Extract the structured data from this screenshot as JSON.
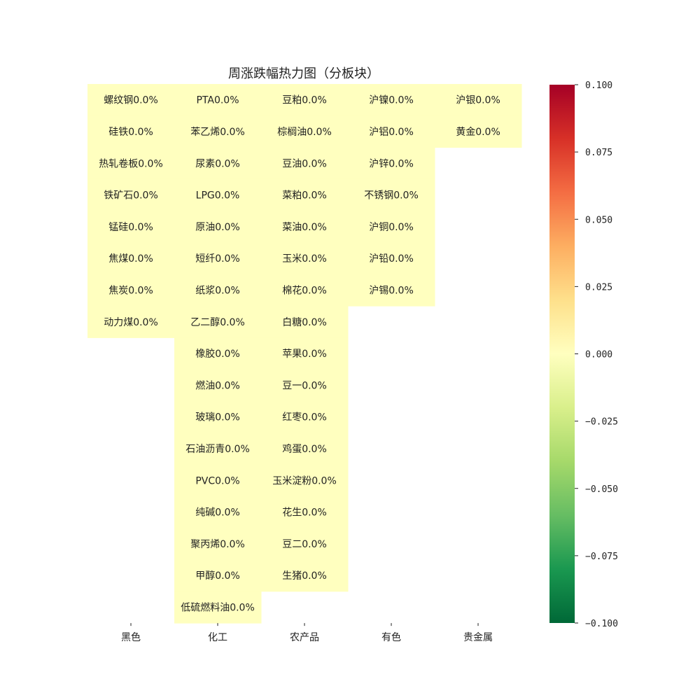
{
  "chart_data": {
    "type": "heatmap",
    "title": "周涨跌幅热力图（分板块）",
    "columns": [
      "黑色",
      "化工",
      "农产品",
      "有色",
      "贵金属"
    ],
    "cells": [
      [
        {
          "name": "螺纹钢",
          "value": 0.0,
          "label": "螺纹钢0.0%"
        },
        {
          "name": "硅铁",
          "value": 0.0,
          "label": "硅铁0.0%"
        },
        {
          "name": "热轧卷板",
          "value": 0.0,
          "label": "热轧卷板0.0%"
        },
        {
          "name": "铁矿石",
          "value": 0.0,
          "label": "铁矿石0.0%"
        },
        {
          "name": "锰硅",
          "value": 0.0,
          "label": "锰硅0.0%"
        },
        {
          "name": "焦煤",
          "value": 0.0,
          "label": "焦煤0.0%"
        },
        {
          "name": "焦炭",
          "value": 0.0,
          "label": "焦炭0.0%"
        },
        {
          "name": "动力煤",
          "value": 0.0,
          "label": "动力煤0.0%"
        }
      ],
      [
        {
          "name": "PTA",
          "value": 0.0,
          "label": "PTA0.0%"
        },
        {
          "name": "苯乙烯",
          "value": 0.0,
          "label": "苯乙烯0.0%"
        },
        {
          "name": "尿素",
          "value": 0.0,
          "label": "尿素0.0%"
        },
        {
          "name": "LPG",
          "value": 0.0,
          "label": "LPG0.0%"
        },
        {
          "name": "原油",
          "value": 0.0,
          "label": "原油0.0%"
        },
        {
          "name": "短纤",
          "value": 0.0,
          "label": "短纤0.0%"
        },
        {
          "name": "纸浆",
          "value": 0.0,
          "label": "纸浆0.0%"
        },
        {
          "name": "乙二醇",
          "value": 0.0,
          "label": "乙二醇0.0%"
        },
        {
          "name": "橡胶",
          "value": 0.0,
          "label": "橡胶0.0%"
        },
        {
          "name": "燃油",
          "value": 0.0,
          "label": "燃油0.0%"
        },
        {
          "name": "玻璃",
          "value": 0.0,
          "label": "玻璃0.0%"
        },
        {
          "name": "石油沥青",
          "value": 0.0,
          "label": "石油沥青0.0%"
        },
        {
          "name": "PVC",
          "value": 0.0,
          "label": "PVC0.0%"
        },
        {
          "name": "纯碱",
          "value": 0.0,
          "label": "纯碱0.0%"
        },
        {
          "name": "聚丙烯",
          "value": 0.0,
          "label": "聚丙烯0.0%"
        },
        {
          "name": "甲醇",
          "value": 0.0,
          "label": "甲醇0.0%"
        },
        {
          "name": "低硫燃料油",
          "value": 0.0,
          "label": "低硫燃料油0.0%"
        }
      ],
      [
        {
          "name": "豆粕",
          "value": 0.0,
          "label": "豆粕0.0%"
        },
        {
          "name": "棕榈油",
          "value": 0.0,
          "label": "棕榈油0.0%"
        },
        {
          "name": "豆油",
          "value": 0.0,
          "label": "豆油0.0%"
        },
        {
          "name": "菜粕",
          "value": 0.0,
          "label": "菜粕0.0%"
        },
        {
          "name": "菜油",
          "value": 0.0,
          "label": "菜油0.0%"
        },
        {
          "name": "玉米",
          "value": 0.0,
          "label": "玉米0.0%"
        },
        {
          "name": "棉花",
          "value": 0.0,
          "label": "棉花0.0%"
        },
        {
          "name": "白糖",
          "value": 0.0,
          "label": "白糖0.0%"
        },
        {
          "name": "苹果",
          "value": 0.0,
          "label": "苹果0.0%"
        },
        {
          "name": "豆一",
          "value": 0.0,
          "label": "豆一0.0%"
        },
        {
          "name": "红枣",
          "value": 0.0,
          "label": "红枣0.0%"
        },
        {
          "name": "鸡蛋",
          "value": 0.0,
          "label": "鸡蛋0.0%"
        },
        {
          "name": "玉米淀粉",
          "value": 0.0,
          "label": "玉米淀粉0.0%"
        },
        {
          "name": "花生",
          "value": 0.0,
          "label": "花生0.0%"
        },
        {
          "name": "豆二",
          "value": 0.0,
          "label": "豆二0.0%"
        },
        {
          "name": "生猪",
          "value": 0.0,
          "label": "生猪0.0%"
        }
      ],
      [
        {
          "name": "沪镍",
          "value": 0.0,
          "label": "沪镍0.0%"
        },
        {
          "name": "沪铝",
          "value": 0.0,
          "label": "沪铝0.0%"
        },
        {
          "name": "沪锌",
          "value": 0.0,
          "label": "沪锌0.0%"
        },
        {
          "name": "不锈钢",
          "value": 0.0,
          "label": "不锈钢0.0%"
        },
        {
          "name": "沪铜",
          "value": 0.0,
          "label": "沪铜0.0%"
        },
        {
          "name": "沪铅",
          "value": 0.0,
          "label": "沪铅0.0%"
        },
        {
          "name": "沪锡",
          "value": 0.0,
          "label": "沪锡0.0%"
        }
      ],
      [
        {
          "name": "沪银",
          "value": 0.0,
          "label": "沪银0.0%"
        },
        {
          "name": "黄金",
          "value": 0.0,
          "label": "黄金0.0%"
        }
      ]
    ],
    "colorbar": {
      "vmin": -0.1,
      "vmax": 0.1,
      "ticks": [
        0.1,
        0.075,
        0.05,
        0.025,
        0.0,
        -0.025,
        -0.05,
        -0.075,
        -0.1
      ],
      "tick_labels": [
        "0.100",
        "0.075",
        "0.050",
        "0.025",
        "0.000",
        "−0.025",
        "−0.050",
        "−0.075",
        "−0.100"
      ],
      "colormap": "RdYlGn_r",
      "stops": [
        "#006837",
        "#1a9850",
        "#66bd63",
        "#a6d96a",
        "#d9ef8b",
        "#ffffbf",
        "#fee08b",
        "#fdae61",
        "#f46d43",
        "#d73027",
        "#a50026"
      ]
    },
    "grid": false,
    "legend": "right"
  }
}
